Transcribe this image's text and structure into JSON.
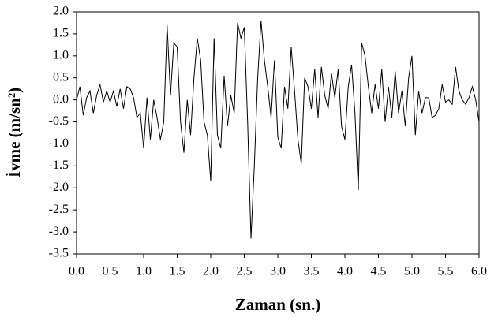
{
  "chart_data": {
    "type": "line",
    "x_label": "Zaman (sn.)",
    "y_label": "İvme (m/sn²)",
    "x": [
      0,
      0.05,
      0.1,
      0.15,
      0.2,
      0.25,
      0.3,
      0.35,
      0.4,
      0.45,
      0.5,
      0.55,
      0.6,
      0.65,
      0.7,
      0.75,
      0.8,
      0.85,
      0.9,
      0.95,
      1.0,
      1.05,
      1.1,
      1.15,
      1.2,
      1.25,
      1.3,
      1.35,
      1.4,
      1.45,
      1.5,
      1.55,
      1.6,
      1.65,
      1.7,
      1.75,
      1.8,
      1.85,
      1.9,
      1.95,
      2.0,
      2.05,
      2.1,
      2.15,
      2.2,
      2.25,
      2.3,
      2.35,
      2.4,
      2.45,
      2.5,
      2.55,
      2.6,
      2.65,
      2.7,
      2.75,
      2.8,
      2.85,
      2.9,
      2.95,
      3.0,
      3.05,
      3.1,
      3.15,
      3.2,
      3.25,
      3.3,
      3.35,
      3.4,
      3.45,
      3.5,
      3.55,
      3.6,
      3.65,
      3.7,
      3.75,
      3.8,
      3.85,
      3.9,
      3.95,
      4.0,
      4.05,
      4.1,
      4.15,
      4.2,
      4.25,
      4.3,
      4.35,
      4.4,
      4.45,
      4.5,
      4.55,
      4.6,
      4.65,
      4.7,
      4.75,
      4.8,
      4.85,
      4.9,
      4.95,
      5.0,
      5.05,
      5.1,
      5.15,
      5.2,
      5.25,
      5.3,
      5.35,
      5.4,
      5.45,
      5.5,
      5.55,
      5.6,
      5.65,
      5.7,
      5.75,
      5.8,
      5.85,
      5.9,
      5.95,
      6.0
    ],
    "series": [
      {
        "color": "#000000",
        "values": [
          0,
          0.3,
          -0.35,
          0.05,
          0.2,
          -0.3,
          0.1,
          0.35,
          -0.05,
          0.2,
          -0.05,
          0.2,
          -0.15,
          0.25,
          -0.2,
          0.3,
          0.25,
          0.05,
          -0.4,
          -0.3,
          -1.1,
          0.05,
          -0.9,
          0.0,
          -0.4,
          -0.9,
          -0.5,
          1.7,
          0.1,
          1.3,
          1.2,
          -0.5,
          -1.2,
          0.0,
          -0.8,
          0.5,
          1.4,
          0.9,
          -0.5,
          -0.8,
          -1.85,
          1.4,
          -0.8,
          -1.1,
          0.55,
          -0.6,
          0.1,
          -0.3,
          1.75,
          1.4,
          1.65,
          -0.5,
          -3.15,
          -1.5,
          0.5,
          1.8,
          0.9,
          0.3,
          -0.4,
          0.9,
          -0.85,
          -1.1,
          0.3,
          -0.2,
          1.2,
          0.2,
          -0.9,
          -1.45,
          0.5,
          0.3,
          -0.2,
          0.7,
          -0.4,
          0.75,
          0.1,
          -0.2,
          0.6,
          0.05,
          0.7,
          -0.6,
          -0.9,
          0.3,
          0.8,
          -0.3,
          -2.05,
          1.3,
          1.0,
          0.3,
          -0.3,
          0.35,
          -0.2,
          0.7,
          -0.5,
          0.3,
          -0.4,
          0.65,
          -0.3,
          0.2,
          -0.6,
          0.5,
          1.0,
          -0.8,
          0.2,
          -0.3,
          0.05,
          0.05,
          -0.4,
          -0.35,
          -0.2,
          0.35,
          -0.05,
          0.0,
          -0.1,
          0.75,
          0.2,
          0.0,
          -0.1,
          0.05,
          0.3,
          0.0,
          -0.5
        ]
      }
    ],
    "xlim": [
      0,
      6
    ],
    "ylim": [
      -3.5,
      2
    ],
    "xticks": [
      {
        "value": 0,
        "label": "0.0"
      },
      {
        "value": 0.5,
        "label": "0.5"
      },
      {
        "value": 1,
        "label": "1.0"
      },
      {
        "value": 1.5,
        "label": "1.5"
      },
      {
        "value": 2,
        "label": "2.0"
      },
      {
        "value": 2.5,
        "label": "2.5"
      },
      {
        "value": 3,
        "label": "3.0"
      },
      {
        "value": 3.5,
        "label": "3.5"
      },
      {
        "value": 4,
        "label": "4.0"
      },
      {
        "value": 4.5,
        "label": "4.5"
      },
      {
        "value": 5,
        "label": "5.0"
      },
      {
        "value": 5.5,
        "label": "5.5"
      },
      {
        "value": 6,
        "label": "6.0"
      }
    ],
    "yticks": [
      {
        "value": -3.5,
        "label": "-3.5"
      },
      {
        "value": -3,
        "label": "-3.0"
      },
      {
        "value": -2.5,
        "label": "-2.5"
      },
      {
        "value": -2,
        "label": "-2.0"
      },
      {
        "value": -1.5,
        "label": "-1.5"
      },
      {
        "value": -1,
        "label": "-1.0"
      },
      {
        "value": -0.5,
        "label": "-0.5"
      },
      {
        "value": 0,
        "label": "0.0"
      },
      {
        "value": 0.5,
        "label": "0.5"
      },
      {
        "value": 1,
        "label": "1.0"
      },
      {
        "value": 1.5,
        "label": "1.5"
      },
      {
        "value": 2,
        "label": "2.0"
      }
    ],
    "grid": false
  }
}
